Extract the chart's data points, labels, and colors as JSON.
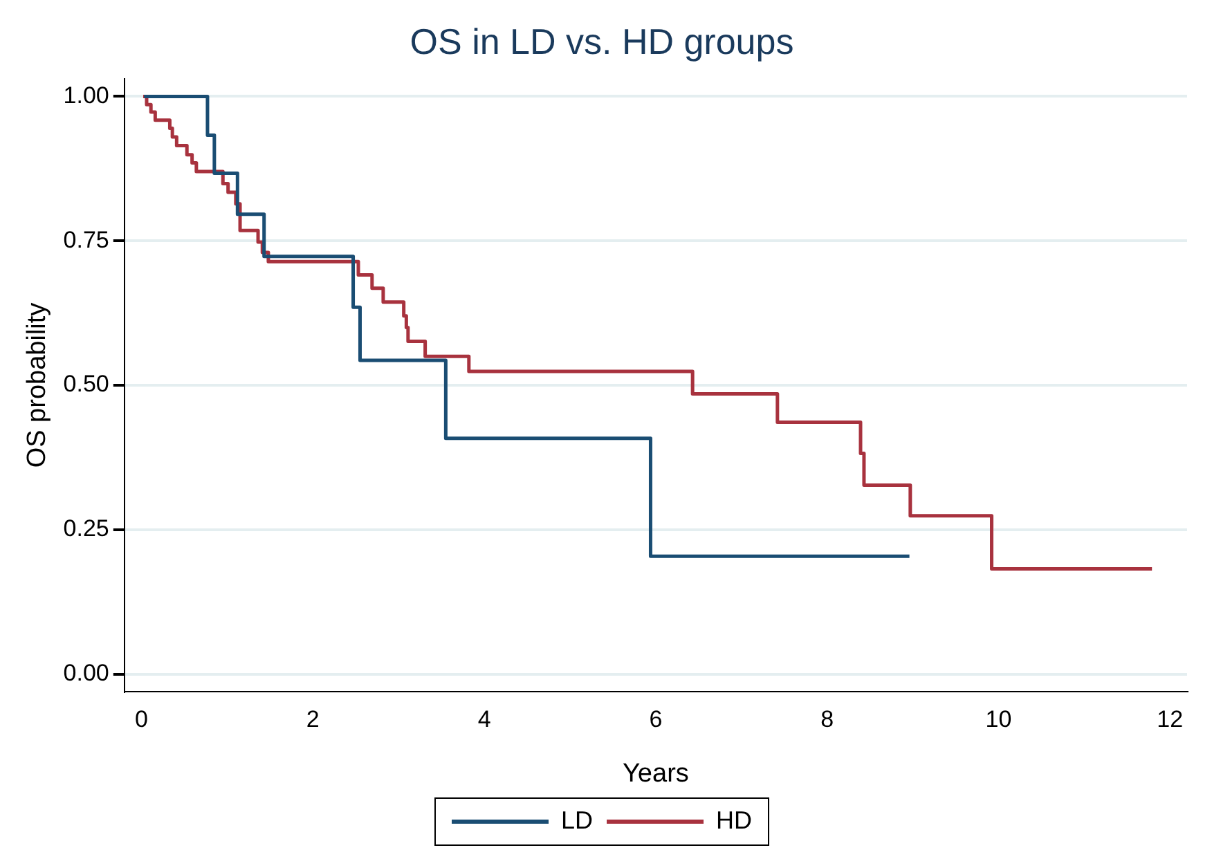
{
  "chart_data": {
    "type": "step",
    "title": "OS in LD vs. HD groups",
    "xlabel": "Years",
    "ylabel": "OS probability",
    "xlim": [
      -0.2,
      12.2
    ],
    "xticks": [
      0,
      2,
      4,
      6,
      8,
      10,
      12
    ],
    "ylim": [
      -0.03,
      1.03
    ],
    "yticks": [
      {
        "value": 0,
        "label": "0.00"
      },
      {
        "value": 0.25,
        "label": "0.25"
      },
      {
        "value": 0.5,
        "label": "0.50"
      },
      {
        "value": 0.75,
        "label": "0.75"
      },
      {
        "value": 1,
        "label": "1.00"
      }
    ],
    "grid": "y",
    "legend": "bottom",
    "series": [
      {
        "name": "LD",
        "color": "#1a4d73",
        "x": [
          0.03,
          0.77,
          0.85,
          1.12,
          1.43,
          2.47,
          2.55,
          3.55,
          5.94,
          8.96
        ],
        "values": [
          1,
          0.933,
          0.867,
          0.796,
          0.723,
          0.635,
          0.543,
          0.408,
          0.204,
          0.204
        ]
      },
      {
        "name": "HD",
        "color": "#a8323e",
        "x": [
          0.02,
          0.06,
          0.11,
          0.16,
          0.33,
          0.36,
          0.41,
          0.53,
          0.59,
          0.64,
          0.95,
          1.01,
          1.1,
          1.15,
          1.36,
          1.41,
          1.48,
          2.53,
          2.69,
          2.82,
          3.06,
          3.09,
          3.11,
          3.31,
          3.82,
          6.43,
          7.42,
          8.39,
          8.43,
          8.97,
          9.92,
          11.79
        ],
        "values": [
          1,
          0.986,
          0.973,
          0.959,
          0.945,
          0.93,
          0.915,
          0.899,
          0.885,
          0.87,
          0.849,
          0.834,
          0.814,
          0.768,
          0.748,
          0.73,
          0.714,
          0.691,
          0.668,
          0.644,
          0.62,
          0.6,
          0.576,
          0.55,
          0.524,
          0.485,
          0.436,
          0.382,
          0.327,
          0.274,
          0.182,
          0.182
        ]
      }
    ]
  }
}
